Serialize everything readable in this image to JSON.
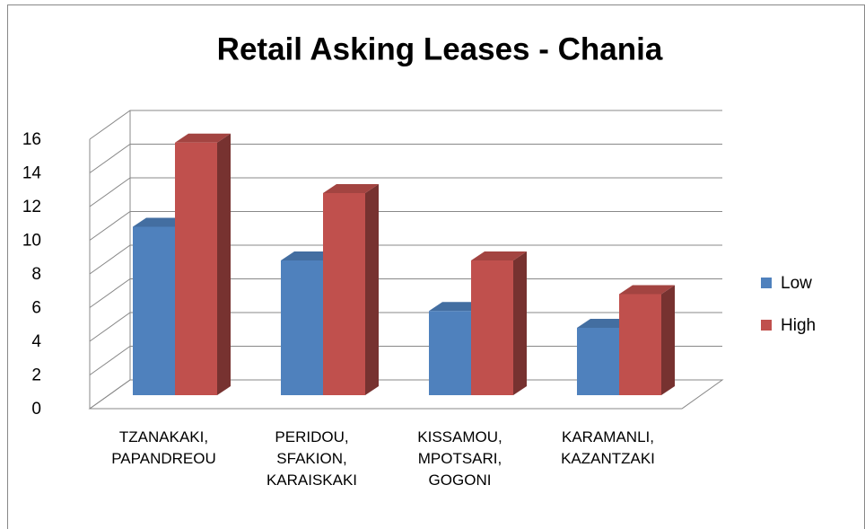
{
  "chart_data": {
    "type": "bar3d",
    "title": "Retail Asking Leases - Chania",
    "categories": [
      "TZANAKAKI, PAPANDREOU",
      "PERIDOU, SFAKION, KARAISKAKI",
      "KISSAMOU, MPOTSARI, GOGONI",
      "KARAMANLI, KAZANTZAKI"
    ],
    "series": [
      {
        "name": "Low",
        "color": "#4f81bd",
        "values": [
          10,
          8,
          5,
          4
        ]
      },
      {
        "name": "High",
        "color": "#c0504d",
        "values": [
          15,
          12,
          8,
          6
        ]
      }
    ],
    "ylim": [
      0,
      16
    ],
    "yticks": [
      0,
      2,
      4,
      6,
      8,
      10,
      12,
      14,
      16
    ],
    "grid": true,
    "legend": "right"
  }
}
